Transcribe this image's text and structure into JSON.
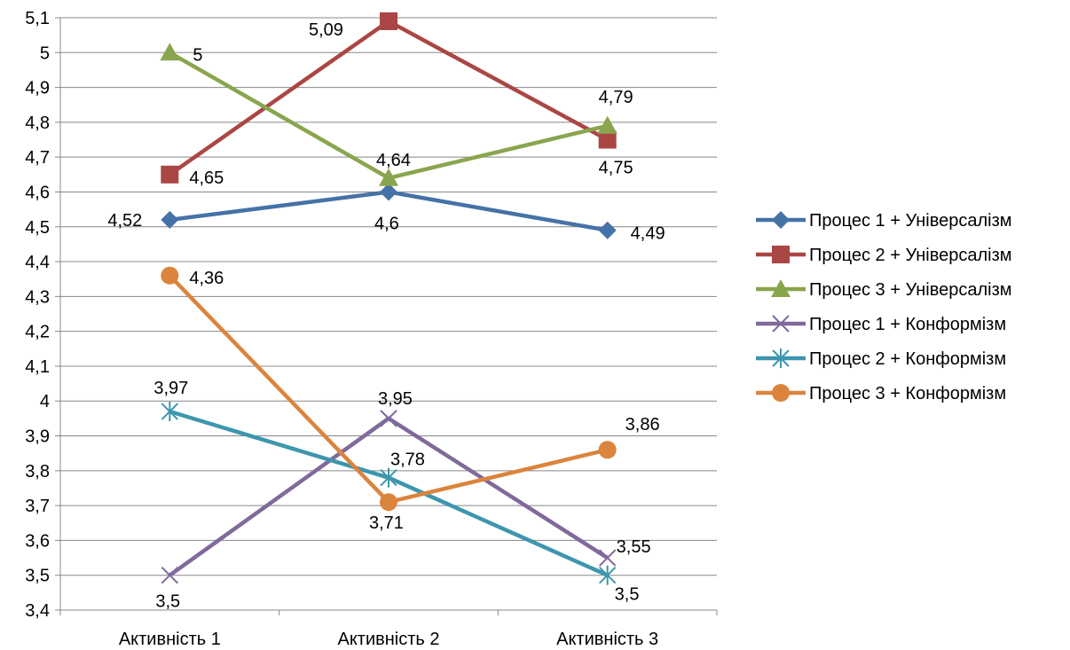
{
  "chart_data": {
    "type": "line",
    "categories": [
      "Активність 1",
      "Активність 2",
      "Активність 3"
    ],
    "ylim": [
      3.4,
      5.1
    ],
    "ytick_step": 0.1,
    "decimal_separator": ",",
    "grid": true,
    "legend_position": "right",
    "series": [
      {
        "name": "Процес 1 + Універсалізм",
        "values": [
          4.52,
          4.6,
          4.49
        ],
        "labels": [
          "4,52",
          "4,6",
          "4,49"
        ],
        "color": "#4572a7",
        "marker": "diamond"
      },
      {
        "name": "Процес 2 + Універсалізм",
        "values": [
          4.65,
          5.09,
          4.75
        ],
        "labels": [
          "4,65",
          "5,09",
          "4,75"
        ],
        "color": "#aa4643",
        "marker": "square"
      },
      {
        "name": " Процес 3 + Універсалізм",
        "values": [
          5.0,
          4.64,
          4.79
        ],
        "labels": [
          "5",
          "4,64",
          "4,79"
        ],
        "color": "#89a54e",
        "marker": "triangle"
      },
      {
        "name": "Процес 1 + Конформізм",
        "values": [
          3.5,
          3.95,
          3.55
        ],
        "labels": [
          "3,5",
          "3,95",
          "3,55"
        ],
        "color": "#80699b",
        "marker": "x"
      },
      {
        "name": "Процес 2 + Конформізм",
        "values": [
          3.97,
          3.78,
          3.5
        ],
        "labels": [
          "3,97",
          "3,78",
          "3,5"
        ],
        "color": "#3d96ae",
        "marker": "star"
      },
      {
        "name": "Процес 3 + Конформізм",
        "values": [
          4.36,
          3.71,
          3.86
        ],
        "labels": [
          "4,36",
          "3,71",
          "3,86"
        ],
        "color": "#db843d",
        "marker": "circle"
      }
    ]
  }
}
